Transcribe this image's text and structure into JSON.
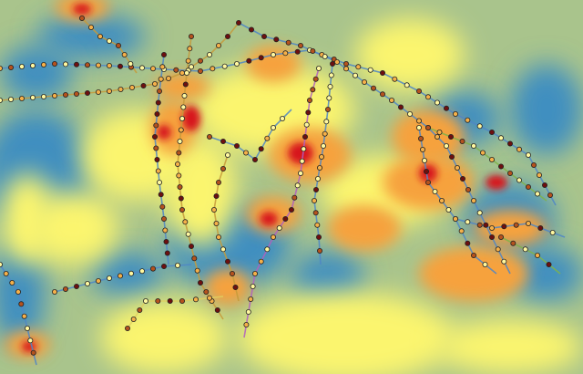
{
  "map": {
    "type": "heatmap-with-transit-stations",
    "palette": {
      "background": "#a9c48c",
      "low": "#3f8fc0",
      "mid_low": "#79b2b8",
      "mid": "#e6e87a",
      "high_mid": "#fbf56e",
      "high": "#f6a23c",
      "very_high": "#e8572c",
      "peak": "#d7191c"
    },
    "station_colors": [
      "#fff8a0",
      "#f5b04a",
      "#b5521e",
      "#6e0f0f"
    ],
    "line_colors": [
      "#4f86c6",
      "#c59a3a",
      "#b05fc0",
      "#7fb34a",
      "#e0d060"
    ]
  }
}
